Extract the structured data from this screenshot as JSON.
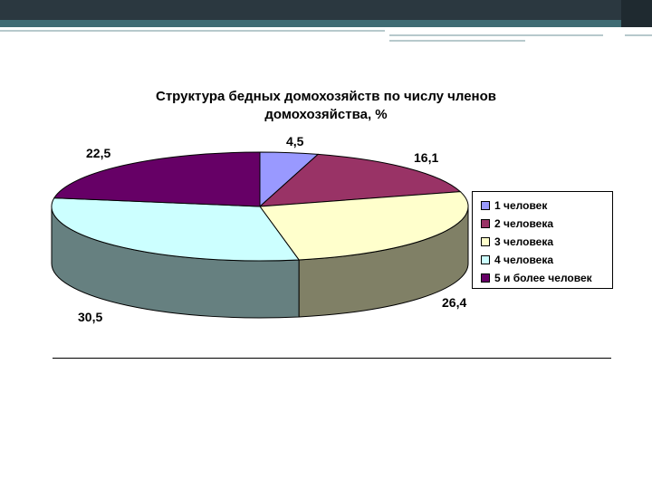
{
  "chart_data": {
    "type": "pie",
    "title_lines": [
      "Структура бедных домохозяйств по числу членов",
      "домохозяйства, %"
    ],
    "series": [
      {
        "name": "1 человек",
        "value": 4.5,
        "label": "4,5",
        "top_color": "#9999ff",
        "side_color": "#7a7acc"
      },
      {
        "name": "2 человека",
        "value": 16.1,
        "label": "16,1",
        "top_color": "#993366",
        "side_color": "#7a2952"
      },
      {
        "name": "3 человека",
        "value": 26.4,
        "label": "26,4",
        "top_color": "#ffffcc",
        "side_color": "#808066"
      },
      {
        "name": "4 человека",
        "value": 30.5,
        "label": "30,5",
        "top_color": "#ccffff",
        "side_color": "#668080"
      },
      {
        "name": "5 и более человек",
        "value": 22.5,
        "label": "22,5",
        "top_color": "#660066",
        "side_color": "#520052"
      }
    ],
    "legend_position": "right",
    "style": "3d-pie"
  }
}
